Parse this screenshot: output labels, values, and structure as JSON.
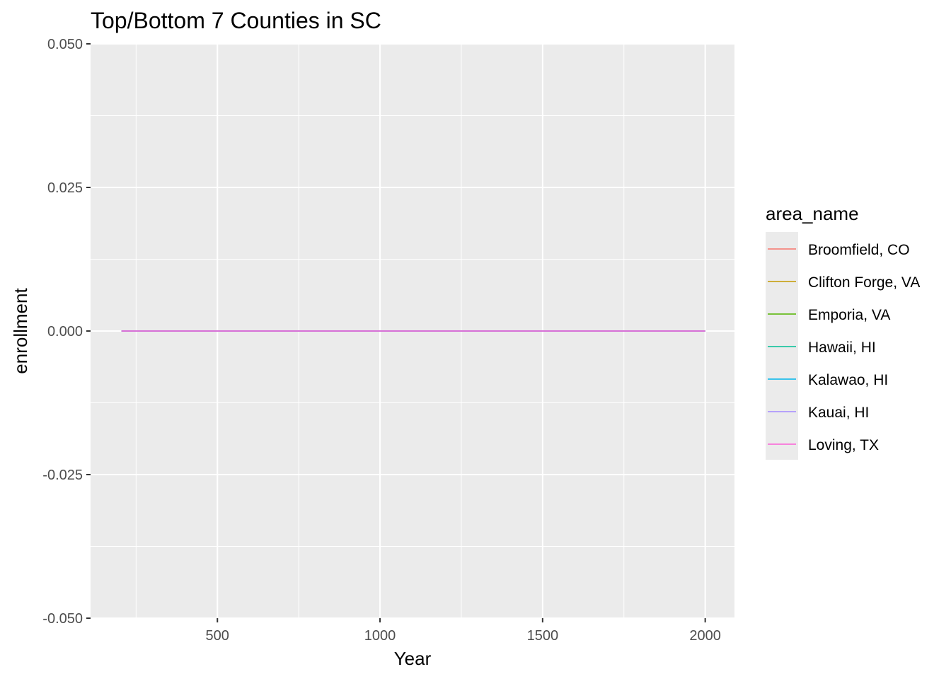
{
  "chart_data": {
    "type": "line",
    "title": "Top/Bottom 7 Counties in SC",
    "xlabel": "Year",
    "ylabel": "enrollment",
    "xlim": [
      110,
      2090
    ],
    "ylim": [
      -0.05,
      0.05
    ],
    "x_ticks": [
      500,
      1000,
      1500,
      2000
    ],
    "x_tick_labels": [
      "500",
      "1000",
      "1500",
      "2000"
    ],
    "x_minor_ticks": [
      250,
      750,
      1250,
      1750
    ],
    "y_ticks": [
      -0.05,
      -0.025,
      0,
      0.025,
      0.05
    ],
    "y_tick_labels": [
      "-0.050",
      "-0.025",
      "0.000",
      "0.025",
      "0.050"
    ],
    "y_minor_ticks": [
      -0.0375,
      -0.0125,
      0.0125,
      0.0375
    ],
    "grid": true,
    "legend_title": "area_name",
    "legend_position": "right",
    "series": [
      {
        "name": "Broomfield, CO",
        "color": "#F8766D",
        "x": [
          205,
          2000
        ],
        "y": [
          0,
          0
        ]
      },
      {
        "name": "Clifton Forge, VA",
        "color": "#C49A00",
        "x": [
          205,
          2000
        ],
        "y": [
          0,
          0
        ]
      },
      {
        "name": "Emporia, VA",
        "color": "#53B400",
        "x": [
          205,
          2000
        ],
        "y": [
          0,
          0
        ]
      },
      {
        "name": "Hawaii, HI",
        "color": "#00C094",
        "x": [
          205,
          2000
        ],
        "y": [
          0,
          0
        ]
      },
      {
        "name": "Kalawao, HI",
        "color": "#00B6EB",
        "x": [
          205,
          2000
        ],
        "y": [
          0,
          0
        ]
      },
      {
        "name": "Kauai, HI",
        "color": "#A58AFF",
        "x": [
          205,
          2000
        ],
        "y": [
          0,
          0
        ]
      },
      {
        "name": "Loving, TX",
        "color": "#FB61D7",
        "x": [
          205,
          2000
        ],
        "y": [
          0,
          0
        ]
      }
    ]
  }
}
